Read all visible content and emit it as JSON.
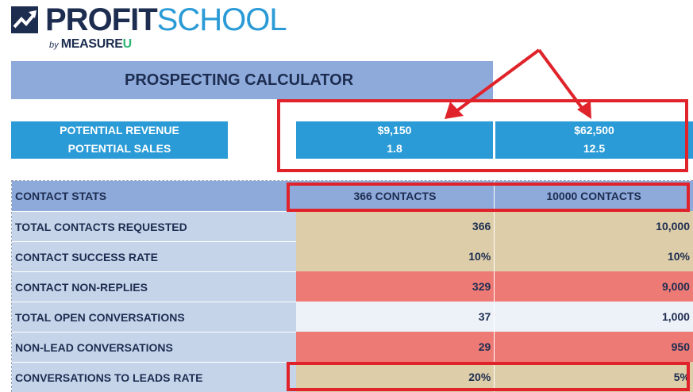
{
  "logo": {
    "profit": "PROFIT",
    "school": "SCHOOL",
    "by": "by",
    "measure": "MEASURE",
    "u": "U",
    "icon": "trending-up-icon"
  },
  "title": "PROSPECTING CALCULATOR",
  "potential": {
    "labels": [
      "POTENTIAL REVENUE",
      "POTENTIAL SALES"
    ],
    "col1": {
      "revenue": "$9,150",
      "sales": "1.8"
    },
    "col2": {
      "revenue": "$62,500",
      "sales": "12.5"
    }
  },
  "table": {
    "header": {
      "label": "CONTACT STATS",
      "col1": "366 CONTACTS",
      "col2": "10000 CONTACTS"
    },
    "rows": [
      {
        "label": "TOTAL CONTACTS REQUESTED",
        "v1": "366",
        "v2": "10,000"
      },
      {
        "label": "CONTACT SUCCESS RATE",
        "v1": "10%",
        "v2": "10%"
      },
      {
        "label": "CONTACT NON-REPLIES",
        "v1": "329",
        "v2": "9,000"
      },
      {
        "label": "TOTAL OPEN CONVERSATIONS",
        "v1": "37",
        "v2": "1,000"
      },
      {
        "label": "NON-LEAD CONVERSATIONS",
        "v1": "29",
        "v2": "950"
      },
      {
        "label": "CONVERSATIONS TO LEADS RATE",
        "v1": "20%",
        "v2": "5%"
      }
    ]
  },
  "colors": {
    "navy": "#1d2d50",
    "blue": "#2a9bd6",
    "header_blue": "#8eaadb",
    "label_blue": "#c6d4ea",
    "tan": "#ddcda9",
    "red_fill": "#ee7a76",
    "annotation_red": "#e0232a"
  }
}
